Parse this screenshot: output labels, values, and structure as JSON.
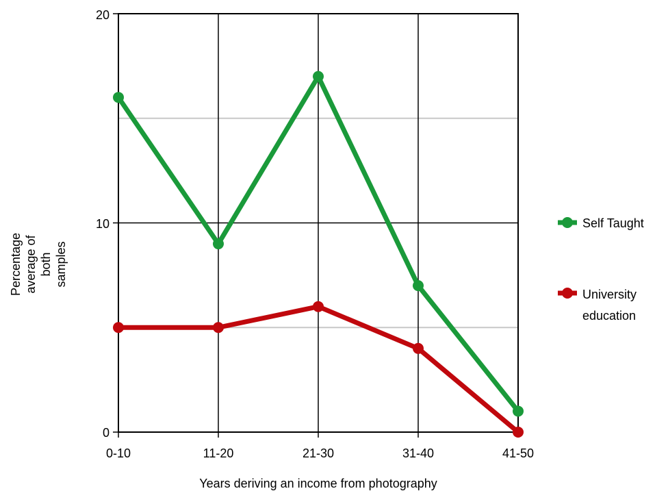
{
  "chart_data": {
    "type": "line",
    "categories": [
      "0-10",
      "11-20",
      "21-30",
      "31-40",
      "41-50"
    ],
    "series": [
      {
        "name": "Self Taught",
        "color": "#1a9a3a",
        "values": [
          16,
          9,
          17,
          7,
          1
        ]
      },
      {
        "name": "University education",
        "color": "#c0080d",
        "values": [
          5,
          5,
          6,
          4,
          0
        ]
      }
    ],
    "title": "",
    "xlabel": "Years deriving an income from photography",
    "ylabel": "Percentage average of both samples",
    "ylim": [
      0,
      20
    ],
    "yticks": [
      "0",
      "10",
      "20"
    ],
    "legend_position": "right",
    "legend": {
      "self_taught": "Self Taught",
      "university_line1": "University",
      "university_line2": "education"
    },
    "ylabel_lines": [
      "Percentage",
      "average of",
      "both",
      "samples"
    ]
  }
}
